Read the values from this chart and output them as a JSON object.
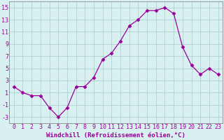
{
  "x": [
    0,
    1,
    2,
    3,
    4,
    5,
    6,
    7,
    8,
    9,
    10,
    11,
    12,
    13,
    14,
    15,
    16,
    17,
    18,
    19,
    20,
    21,
    22,
    23
  ],
  "y": [
    2.0,
    1.0,
    0.5,
    0.5,
    -1.5,
    -3.0,
    -1.5,
    2.0,
    2.0,
    3.5,
    6.5,
    7.5,
    9.5,
    12.0,
    13.0,
    14.5,
    14.5,
    15.0,
    14.0,
    8.5,
    5.5,
    4.0,
    5.0,
    4.0
  ],
  "line_color": "#990099",
  "marker": "D",
  "marker_size": 2.5,
  "bg_color": "#d8f0f0",
  "grid_color": "#b0d0d0",
  "spine_color": "#888888",
  "xlabel": "Windchill (Refroidissement éolien,°C)",
  "xlabel_fontsize": 6.5,
  "tick_fontsize": 6.0,
  "ylim": [
    -4,
    16
  ],
  "yticks": [
    -3,
    -1,
    1,
    3,
    5,
    7,
    9,
    11,
    13,
    15
  ],
  "xlim": [
    -0.5,
    23.5
  ],
  "xticks": [
    0,
    1,
    2,
    3,
    4,
    5,
    6,
    7,
    8,
    9,
    10,
    11,
    12,
    13,
    14,
    15,
    16,
    17,
    18,
    19,
    20,
    21,
    22,
    23
  ]
}
